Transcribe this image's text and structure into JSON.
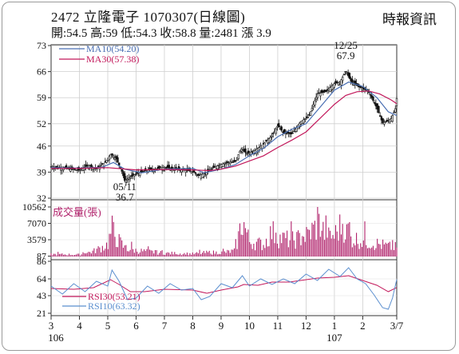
{
  "header": {
    "title": "2472  立隆電子 1070307(日線圖)",
    "source": "時報資訊",
    "quote": "開:54.5 高:59 低:54.3 收:58.8 量:2481 漲 3.9"
  },
  "colors": {
    "ma10": "#4a6fb3",
    "ma30": "#c2185b",
    "vol": "#b0206a",
    "rsi30": "#c2185b",
    "rsi10": "#5b8fcf",
    "up": "#111111"
  },
  "chart_data": [
    {
      "type": "candlestick",
      "name": "price",
      "ylim": [
        32,
        73
      ],
      "yticks": [
        73,
        66,
        59,
        52,
        46,
        39,
        32
      ],
      "legend": [
        {
          "label": "MA10(54.20)",
          "color": "#4a6fb3"
        },
        {
          "label": "MA30(57.38)",
          "color": "#c2185b"
        }
      ],
      "annotations": [
        {
          "label": "12/25",
          "value": "67.9",
          "x": 10.4,
          "y": 67.9
        },
        {
          "label": "05/11",
          "value": "36.7",
          "x": 2.6,
          "y": 36.7
        }
      ],
      "keypoints": [
        [
          0,
          40.5
        ],
        [
          0.5,
          40.0
        ],
        [
          1.0,
          39.5
        ],
        [
          1.3,
          40.8
        ],
        [
          1.6,
          39.9
        ],
        [
          1.9,
          41.5
        ],
        [
          2.1,
          43.8
        ],
        [
          2.3,
          42.6
        ],
        [
          2.5,
          39.2
        ],
        [
          2.6,
          36.7
        ],
        [
          3.0,
          38.6
        ],
        [
          3.4,
          39.5
        ],
        [
          4.0,
          40.3
        ],
        [
          4.6,
          39.6
        ],
        [
          5.0,
          39.2
        ],
        [
          5.2,
          38.0
        ],
        [
          5.4,
          38.6
        ],
        [
          5.8,
          40.5
        ],
        [
          6.2,
          41.6
        ],
        [
          6.5,
          41.8
        ],
        [
          6.7,
          45.2
        ],
        [
          6.9,
          44.0
        ],
        [
          7.2,
          44.8
        ],
        [
          7.5,
          46.5
        ],
        [
          7.8,
          48.8
        ],
        [
          8.0,
          51.5
        ],
        [
          8.2,
          49.6
        ],
        [
          8.5,
          49.2
        ],
        [
          8.8,
          52.5
        ],
        [
          9.1,
          54.0
        ],
        [
          9.4,
          60.0
        ],
        [
          9.7,
          60.6
        ],
        [
          10.0,
          62.8
        ],
        [
          10.2,
          63.2
        ],
        [
          10.4,
          66.2
        ],
        [
          10.6,
          63.2
        ],
        [
          10.9,
          61.8
        ],
        [
          11.2,
          60.8
        ],
        [
          11.5,
          56.2
        ],
        [
          11.7,
          52.2
        ],
        [
          11.9,
          52.8
        ],
        [
          12.0,
          53.3
        ],
        [
          12.15,
          56.0
        ],
        [
          12.2,
          58.8
        ]
      ],
      "series": [
        {
          "name": "MA10",
          "values": [
            [
              0,
              40.2
            ],
            [
              1.0,
              40.1
            ],
            [
              1.8,
              40.3
            ],
            [
              2.2,
              41.6
            ],
            [
              2.6,
              39.8
            ],
            [
              3.2,
              38.8
            ],
            [
              4.0,
              39.8
            ],
            [
              5.0,
              40.0
            ],
            [
              5.4,
              38.8
            ],
            [
              6.0,
              39.8
            ],
            [
              6.5,
              41.0
            ],
            [
              7.0,
              43.4
            ],
            [
              7.5,
              45.4
            ],
            [
              8.0,
              48.5
            ],
            [
              8.5,
              50.5
            ],
            [
              9.0,
              52.0
            ],
            [
              9.5,
              56.5
            ],
            [
              10.0,
              61.0
            ],
            [
              10.5,
              63.2
            ],
            [
              11.0,
              62.0
            ],
            [
              11.5,
              59.0
            ],
            [
              11.9,
              55.2
            ],
            [
              12.2,
              54.2
            ]
          ]
        },
        {
          "name": "MA30",
          "values": [
            [
              0,
              40.0
            ],
            [
              1.0,
              40.0
            ],
            [
              2.0,
              40.2
            ],
            [
              3.0,
              39.6
            ],
            [
              4.0,
              39.7
            ],
            [
              5.0,
              39.6
            ],
            [
              5.6,
              39.4
            ],
            [
              6.0,
              39.8
            ],
            [
              6.5,
              40.6
            ],
            [
              7.0,
              42.0
            ],
            [
              7.5,
              43.4
            ],
            [
              8.0,
              45.6
            ],
            [
              8.5,
              47.6
            ],
            [
              9.0,
              49.8
            ],
            [
              9.5,
              53.5
            ],
            [
              10.0,
              57.2
            ],
            [
              10.4,
              59.6
            ],
            [
              10.8,
              60.6
            ],
            [
              11.2,
              60.8
            ],
            [
              11.6,
              60.0
            ],
            [
              12.0,
              58.4
            ],
            [
              12.2,
              57.4
            ]
          ]
        }
      ]
    },
    {
      "type": "bar",
      "name": "volume",
      "title": "成交量(張)",
      "ylim": [
        0,
        10562
      ],
      "yticks": [
        "10562",
        "7070",
        "3579",
        "87"
      ],
      "keypoints": [
        [
          0,
          600
        ],
        [
          1.0,
          500
        ],
        [
          1.5,
          1400
        ],
        [
          2.0,
          3200
        ],
        [
          2.15,
          7300
        ],
        [
          2.3,
          5000
        ],
        [
          2.6,
          2200
        ],
        [
          3.0,
          1600
        ],
        [
          4.0,
          900
        ],
        [
          5.0,
          700
        ],
        [
          5.6,
          1100
        ],
        [
          6.0,
          1000
        ],
        [
          6.5,
          1500
        ],
        [
          6.75,
          9800
        ],
        [
          7.0,
          4000
        ],
        [
          7.5,
          3200
        ],
        [
          7.8,
          6600
        ],
        [
          8.0,
          5000
        ],
        [
          8.5,
          4300
        ],
        [
          9.0,
          5400
        ],
        [
          9.3,
          7500
        ],
        [
          9.5,
          9000
        ],
        [
          9.7,
          5000
        ],
        [
          10.0,
          5600
        ],
        [
          10.3,
          9000
        ],
        [
          10.5,
          5000
        ],
        [
          11.0,
          4200
        ],
        [
          11.5,
          3400
        ],
        [
          12.0,
          2500
        ],
        [
          12.2,
          2481
        ]
      ]
    },
    {
      "type": "line",
      "name": "rsi",
      "ylim": [
        21,
        86
      ],
      "yticks": [
        86,
        64,
        43,
        21
      ],
      "legend": [
        {
          "label": "RSI30(53.21)",
          "color": "#c2185b"
        },
        {
          "label": "RSI10(63.32)",
          "color": "#5b8fcf"
        }
      ],
      "series": [
        {
          "name": "RSI30",
          "values": [
            [
              0,
              52
            ],
            [
              0.8,
              51
            ],
            [
              1.5,
              53
            ],
            [
              2.1,
              63
            ],
            [
              2.4,
              57
            ],
            [
              2.8,
              48
            ],
            [
              3.3,
              48
            ],
            [
              4.0,
              51
            ],
            [
              5.0,
              50
            ],
            [
              5.5,
              46
            ],
            [
              6.0,
              50
            ],
            [
              6.6,
              54
            ],
            [
              6.8,
              57
            ],
            [
              7.3,
              56
            ],
            [
              7.8,
              60
            ],
            [
              8.4,
              60
            ],
            [
              8.8,
              62
            ],
            [
              9.4,
              65
            ],
            [
              10.0,
              66
            ],
            [
              10.5,
              68
            ],
            [
              11.0,
              62
            ],
            [
              11.5,
              56
            ],
            [
              11.9,
              48
            ],
            [
              12.2,
              53.21
            ]
          ]
        },
        {
          "name": "RSI10",
          "values": [
            [
              0,
              55
            ],
            [
              0.4,
              45
            ],
            [
              0.8,
              58
            ],
            [
              1.2,
              48
            ],
            [
              1.6,
              61
            ],
            [
              2.0,
              55
            ],
            [
              2.15,
              75
            ],
            [
              2.4,
              61
            ],
            [
              2.7,
              38
            ],
            [
              3.0,
              40
            ],
            [
              3.4,
              55
            ],
            [
              3.8,
              46
            ],
            [
              4.2,
              58
            ],
            [
              4.6,
              50
            ],
            [
              5.0,
              52
            ],
            [
              5.3,
              38
            ],
            [
              5.6,
              42
            ],
            [
              6.0,
              58
            ],
            [
              6.4,
              53
            ],
            [
              6.75,
              68
            ],
            [
              7.0,
              55
            ],
            [
              7.4,
              64
            ],
            [
              7.8,
              57
            ],
            [
              8.2,
              64
            ],
            [
              8.6,
              58
            ],
            [
              9.0,
              70
            ],
            [
              9.4,
              62
            ],
            [
              9.8,
              76
            ],
            [
              10.2,
              67
            ],
            [
              10.5,
              78
            ],
            [
              10.8,
              64
            ],
            [
              11.1,
              58
            ],
            [
              11.4,
              44
            ],
            [
              11.7,
              28
            ],
            [
              11.9,
              26
            ],
            [
              12.05,
              40
            ],
            [
              12.2,
              63.32
            ]
          ]
        }
      ]
    }
  ],
  "x_axis": {
    "months": [
      {
        "label": "3",
        "x": 0
      },
      {
        "label": "4",
        "x": 1
      },
      {
        "label": "5",
        "x": 2
      },
      {
        "label": "6",
        "x": 3
      },
      {
        "label": "7",
        "x": 4
      },
      {
        "label": "8",
        "x": 5
      },
      {
        "label": "9",
        "x": 6
      },
      {
        "label": "10",
        "x": 7
      },
      {
        "label": "11",
        "x": 8
      },
      {
        "label": "12",
        "x": 9
      },
      {
        "label": "1",
        "x": 10
      },
      {
        "label": "2",
        "x": 11
      },
      {
        "label": "3/7",
        "x": 12.2
      }
    ],
    "years": [
      {
        "label": "106",
        "x": 0
      },
      {
        "label": "107",
        "x": 10
      }
    ]
  }
}
